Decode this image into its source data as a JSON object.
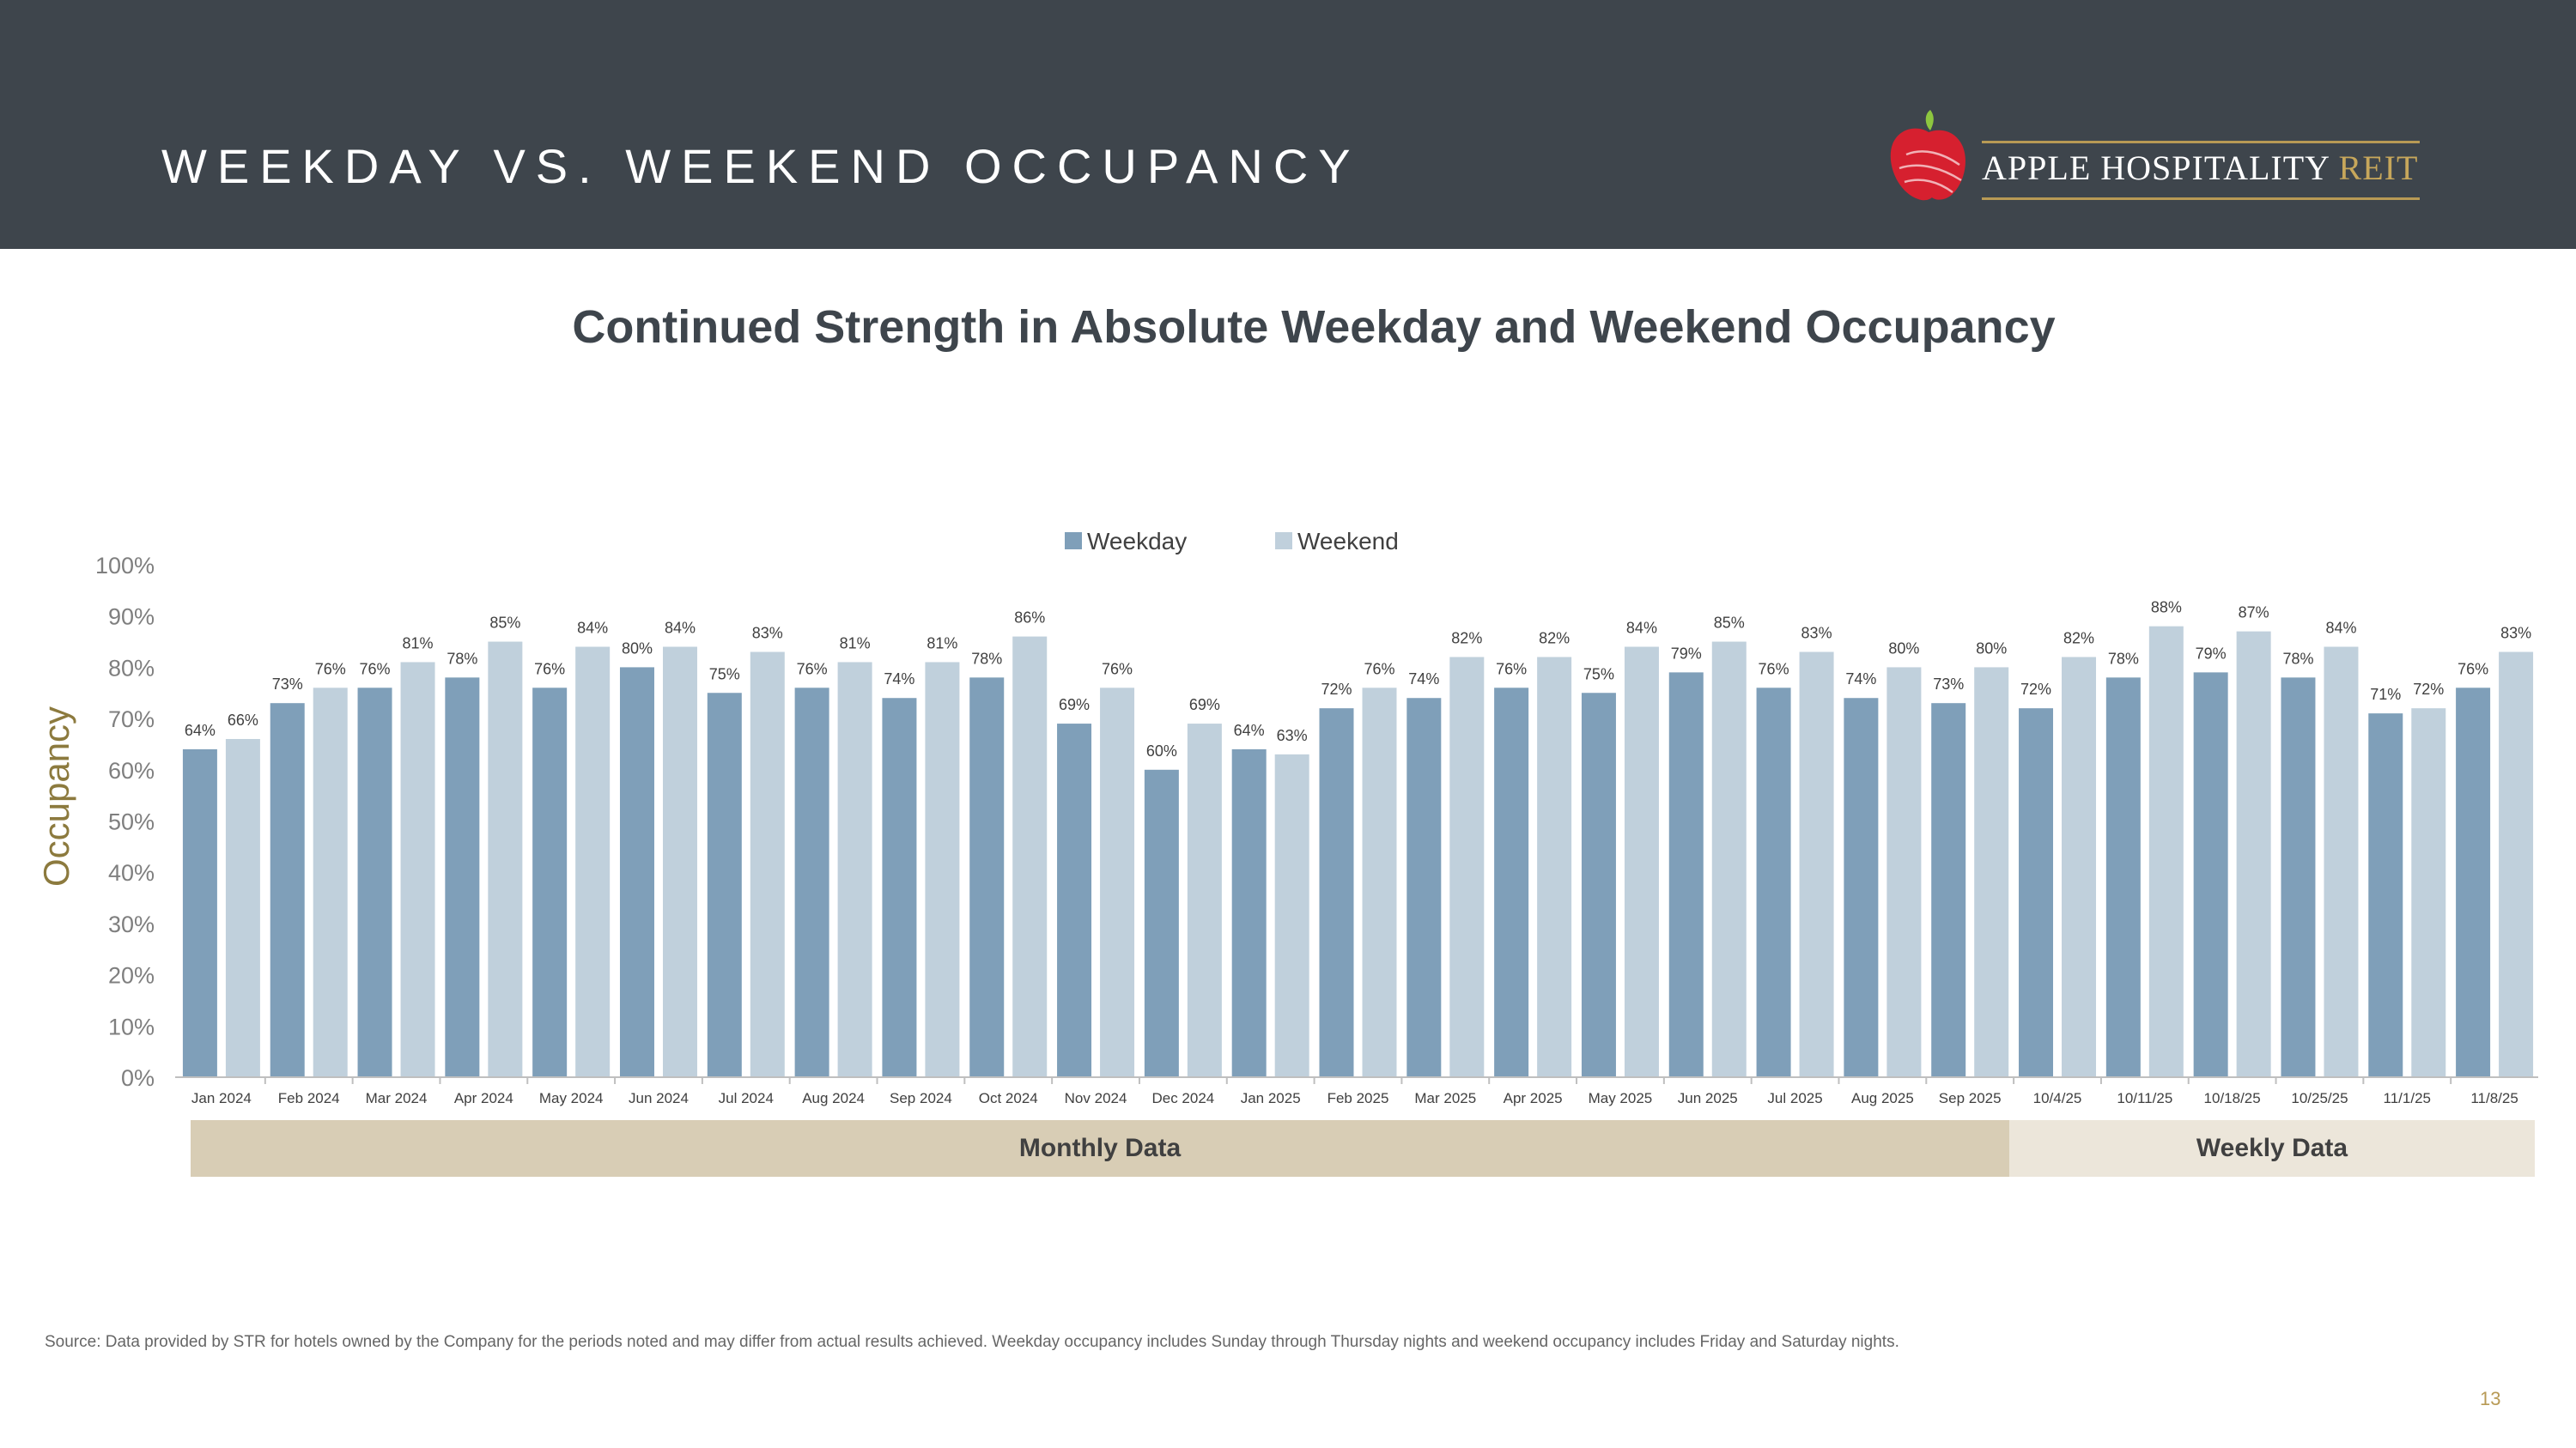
{
  "header": {
    "title": "WEEKDAY VS. WEEKEND OCCUPANCY",
    "logo_text": "APPLE HOSPITALITY",
    "logo_accent": "REIT",
    "logo_icon": "apple-icon",
    "background_color": "#3e454c"
  },
  "chart_data": {
    "type": "bar",
    "title": "Continued Strength in Absolute Weekday and Weekend Occupancy",
    "ylabel": "Occupancy",
    "xlabel": "",
    "ylim": [
      0,
      100
    ],
    "y_ticks": [
      "0%",
      "10%",
      "20%",
      "30%",
      "40%",
      "50%",
      "60%",
      "70%",
      "80%",
      "90%",
      "100%"
    ],
    "grid": false,
    "legend_position": "top-center",
    "categories": [
      "Jan 2024",
      "Feb 2024",
      "Mar 2024",
      "Apr 2024",
      "May 2024",
      "Jun 2024",
      "Jul 2024",
      "Aug 2024",
      "Sep 2024",
      "Oct 2024",
      "Nov 2024",
      "Dec 2024",
      "Jan 2025",
      "Feb 2025",
      "Mar 2025",
      "Apr 2025",
      "May 2025",
      "Jun 2025",
      "Jul 2025",
      "Aug 2025",
      "Sep 2025",
      "10/4/25",
      "10/11/25",
      "10/18/25",
      "10/25/25",
      "11/1/25",
      "11/8/25"
    ],
    "series": [
      {
        "name": "Weekday",
        "color": "#7f9fb9",
        "values": [
          64,
          73,
          76,
          78,
          76,
          80,
          75,
          76,
          74,
          78,
          69,
          60,
          64,
          72,
          74,
          76,
          75,
          79,
          76,
          74,
          73,
          72,
          78,
          79,
          78,
          71,
          76
        ]
      },
      {
        "name": "Weekend",
        "color": "#c0d0dc",
        "values": [
          66,
          76,
          81,
          85,
          84,
          84,
          83,
          81,
          81,
          86,
          76,
          69,
          63,
          76,
          82,
          82,
          84,
          85,
          83,
          80,
          80,
          82,
          88,
          87,
          84,
          72,
          83
        ]
      }
    ],
    "groups": [
      {
        "label": "Monthly Data",
        "color": "#d8cdb5"
      },
      {
        "label": "Weekly Data",
        "color": "#ece6da"
      }
    ]
  },
  "footer": {
    "source": "Source:  Data provided by STR for hotels owned by the Company for the periods noted and may differ from actual results achieved. Weekday occupancy includes Sunday through Thursday nights and weekend occupancy includes Friday and Saturday nights.",
    "page_number": "13"
  }
}
